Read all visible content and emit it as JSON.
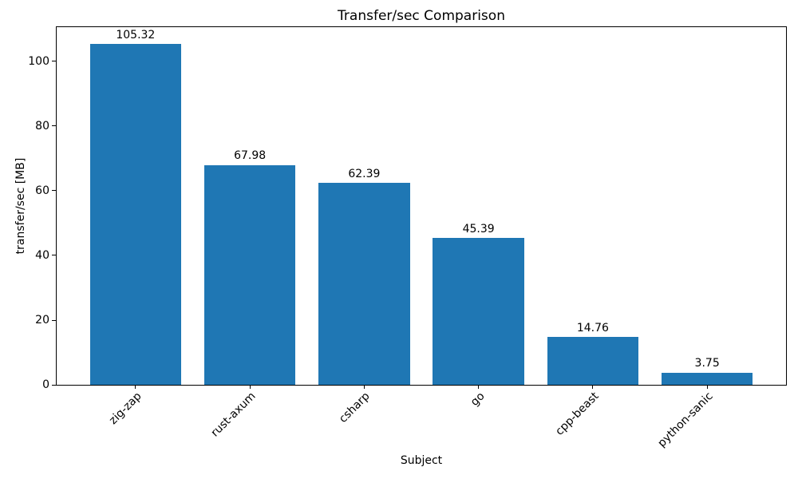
{
  "chart_data": {
    "type": "bar",
    "title": "Transfer/sec Comparison",
    "xlabel": "Subject",
    "ylabel": "transfer/sec [MB]",
    "categories": [
      "zig-zap",
      "rust-axum",
      "csharp",
      "go",
      "cpp-beast",
      "python-sanic"
    ],
    "values": [
      105.32,
      67.98,
      62.39,
      45.39,
      14.76,
      3.75
    ],
    "value_labels": [
      "105.32",
      "67.98",
      "62.39",
      "45.39",
      "14.76",
      "3.75"
    ],
    "yticks": [
      0,
      20,
      40,
      60,
      80,
      100
    ],
    "ylim": [
      0,
      110.6
    ],
    "bar_color": "#1f77b4",
    "background_color": "#ffffff",
    "grid": false,
    "xtick_rotation": 45,
    "bar_width_fraction": 0.8
  }
}
